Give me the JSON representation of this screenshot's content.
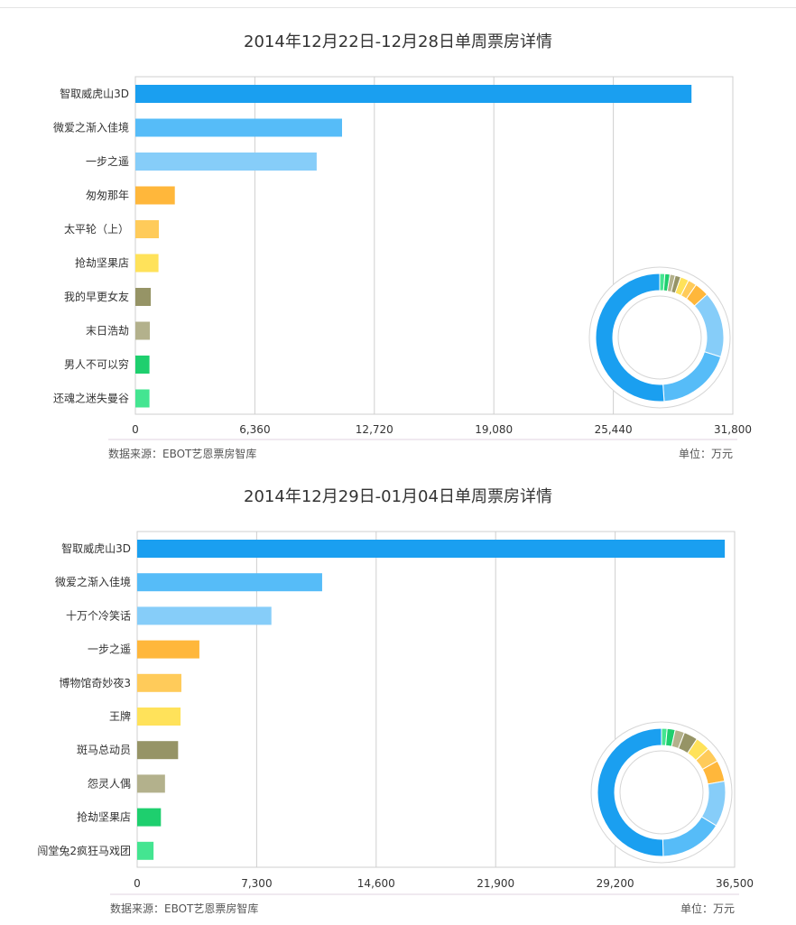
{
  "source_label": "数据来源：EBOT艺恩票房智库",
  "unit_label": "单位：万元",
  "chart_data": [
    {
      "type": "bar",
      "orientation": "horizontal",
      "title": "2014年12月22日-12月28日单周票房详情",
      "categories": [
        "智取威虎山3D",
        "微爱之渐入佳境",
        "一步之遥",
        "匆匆那年",
        "太平轮（上）",
        "抢劫坚果店",
        "我的早更女友",
        "末日浩劫",
        "男人不可以穷",
        "还魂之迷失曼谷"
      ],
      "values": [
        29600,
        11000,
        9650,
        2100,
        1250,
        1230,
        820,
        770,
        750,
        750
      ],
      "xlim": [
        0,
        31800
      ],
      "xticks": [
        "0",
        "6,360",
        "12,720",
        "19,080",
        "25,440",
        "31,800"
      ],
      "colors": [
        "#1a9ff0",
        "#56bcf8",
        "#86cdf9",
        "#ffb73b",
        "#ffcb5a",
        "#ffe25a",
        "#969466",
        "#b3b18c",
        "#1ecf6e",
        "#44e591"
      ],
      "donut": true
    },
    {
      "type": "bar",
      "orientation": "horizontal",
      "title": "2014年12月29日-01月04日单周票房详情",
      "categories": [
        "智取威虎山3D",
        "微爱之渐入佳境",
        "十万个冷笑话",
        "一步之遥",
        "博物馆奇妙夜3",
        "王牌",
        "斑马总动员",
        "怨灵人偶",
        "抢劫坚果店",
        "闯堂兔2疯狂马戏团"
      ],
      "values": [
        35900,
        11300,
        8200,
        3800,
        2700,
        2650,
        2500,
        1700,
        1450,
        1000
      ],
      "xlim": [
        0,
        36500
      ],
      "xticks": [
        "0",
        "7,300",
        "14,600",
        "21,900",
        "29,200",
        "36,500"
      ],
      "colors": [
        "#1a9ff0",
        "#56bcf8",
        "#86cdf9",
        "#ffb73b",
        "#ffcb5a",
        "#ffe25a",
        "#969466",
        "#b3b18c",
        "#1ecf6e",
        "#44e591"
      ],
      "donut": true
    }
  ]
}
